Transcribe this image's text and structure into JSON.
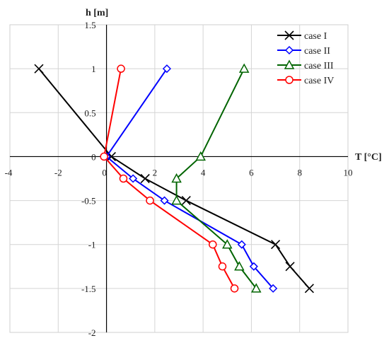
{
  "chart_data": {
    "type": "line",
    "xlabel": "T [°C]",
    "ylabel": "h [m]",
    "xlim": [
      -4,
      10
    ],
    "ylim": [
      -2,
      1.5
    ],
    "x_ticks": [
      -4,
      -2,
      0,
      2,
      4,
      6,
      8,
      10
    ],
    "y_ticks": [
      1.5,
      1,
      0.5,
      0,
      -0.5,
      -1,
      -1.5,
      -2
    ],
    "grid": true,
    "legend_position": "top-right",
    "series": [
      {
        "name": "case I",
        "color": "#000000",
        "marker": "x",
        "points": [
          [
            -2.8,
            1
          ],
          [
            0.2,
            0
          ],
          [
            1.6,
            -0.25
          ],
          [
            3.3,
            -0.5
          ],
          [
            7.0,
            -1
          ],
          [
            7.6,
            -1.25
          ],
          [
            8.4,
            -1.5
          ]
        ]
      },
      {
        "name": "case II",
        "color": "#0000ff",
        "marker": "diamond",
        "points": [
          [
            2.5,
            1
          ],
          [
            0.0,
            0
          ],
          [
            1.1,
            -0.25
          ],
          [
            2.4,
            -0.5
          ],
          [
            5.6,
            -1
          ],
          [
            6.1,
            -1.25
          ],
          [
            6.9,
            -1.5
          ]
        ]
      },
      {
        "name": "case III",
        "color": "#006400",
        "marker": "triangle",
        "points": [
          [
            5.7,
            1
          ],
          [
            3.9,
            0
          ],
          [
            2.9,
            -0.25
          ],
          [
            2.9,
            -0.5
          ],
          [
            5.0,
            -1
          ],
          [
            5.5,
            -1.25
          ],
          [
            6.2,
            -1.5
          ]
        ]
      },
      {
        "name": "case IV",
        "color": "#ff0000",
        "marker": "circle",
        "points": [
          [
            0.6,
            1
          ],
          [
            -0.1,
            0
          ],
          [
            0.7,
            -0.25
          ],
          [
            1.8,
            -0.5
          ],
          [
            4.4,
            -1
          ],
          [
            4.8,
            -1.25
          ],
          [
            5.3,
            -1.5
          ]
        ]
      }
    ]
  }
}
